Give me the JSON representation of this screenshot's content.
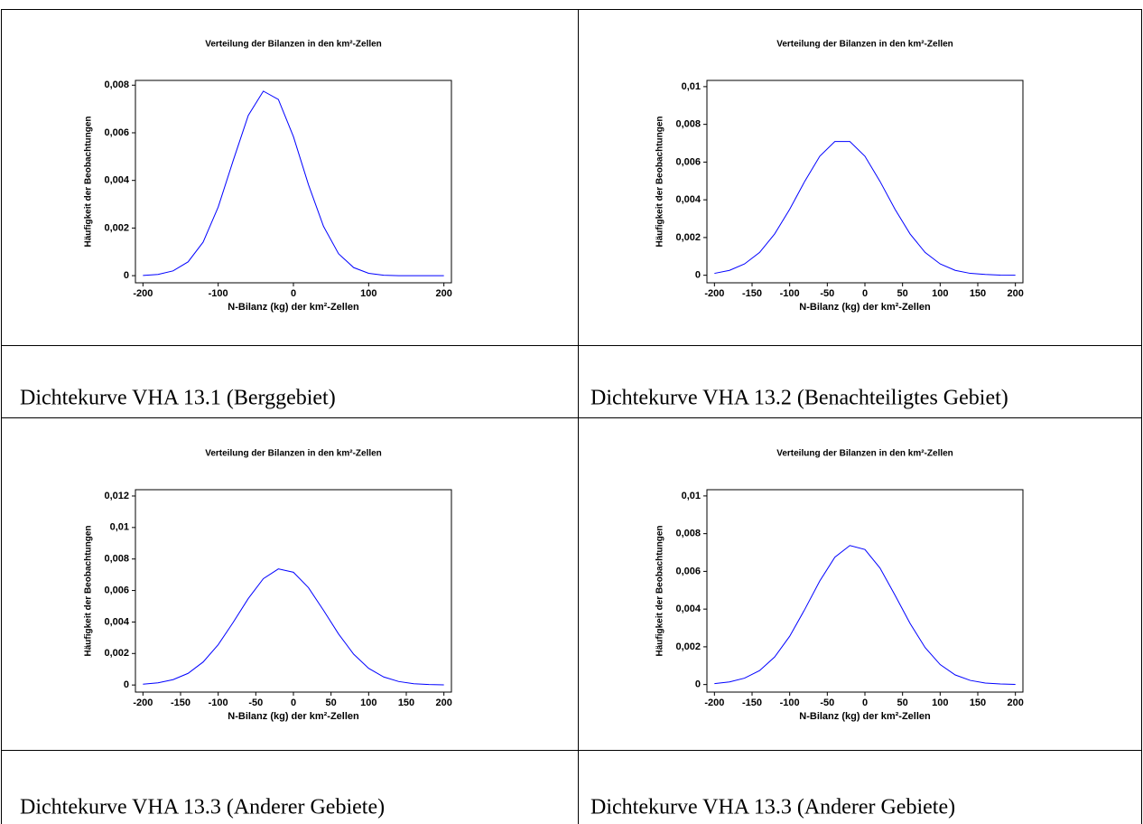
{
  "chart_data": [
    {
      "type": "line",
      "title": "Verteilung der Bilanzen in den km²-Zellen",
      "xlabel": "N-Bilanz (kg) der km²-Zellen",
      "ylabel": "Häufigkeit der Beobachtungen",
      "color": "#0000ff",
      "x": [
        -200,
        -180,
        -160,
        -140,
        -120,
        -100,
        -80,
        -60,
        -40,
        -20,
        0,
        20,
        40,
        60,
        80,
        100,
        120,
        140,
        160,
        180,
        200
      ],
      "values": [
        1e-05,
        5e-05,
        0.0002,
        0.00058,
        0.00141,
        0.00288,
        0.00484,
        0.00673,
        0.00775,
        0.0074,
        0.00584,
        0.00382,
        0.00207,
        0.00092,
        0.00034,
        0.0001,
        2e-05,
        0,
        0,
        0,
        0
      ],
      "xlim": [
        -210,
        210
      ],
      "ylim": [
        -0.0003,
        0.0082
      ],
      "xticks": [
        -200,
        -100,
        0,
        100,
        200
      ],
      "yticks": [
        0,
        {
          "value": 0.002,
          "label": "0,002"
        },
        {
          "value": 0.004,
          "label": "0,004"
        },
        {
          "value": 0.006,
          "label": "0,006"
        },
        {
          "value": 0.008,
          "label": "0,008"
        }
      ]
    },
    {
      "type": "line",
      "title": "Verteilung der Bilanzen in den km²-Zellen",
      "xlabel": "N-Bilanz (kg) der km²-Zellen",
      "ylabel": "Häufigkeit der Beobachtungen",
      "color": "#0000ff",
      "x": [
        -200,
        -180,
        -160,
        -140,
        -120,
        -100,
        -80,
        -60,
        -40,
        -20,
        0,
        20,
        40,
        60,
        80,
        100,
        120,
        140,
        160,
        180,
        200
      ],
      "values": [
        0.0001,
        0.00026,
        0.0006,
        0.00121,
        0.00219,
        0.0035,
        0.00498,
        0.00631,
        0.00709,
        0.00709,
        0.00631,
        0.00498,
        0.0035,
        0.00219,
        0.00121,
        0.0006,
        0.00026,
        0.0001,
        4e-05,
        1e-05,
        0
      ],
      "xlim": [
        -210,
        210
      ],
      "ylim": [
        -0.0004,
        0.01033
      ],
      "xticks": [
        -200,
        -150,
        -100,
        -50,
        0,
        50,
        100,
        150,
        200
      ],
      "yticks": [
        0,
        {
          "value": 0.002,
          "label": "0,002"
        },
        {
          "value": 0.004,
          "label": "0,004"
        },
        {
          "value": 0.006,
          "label": "0,006"
        },
        {
          "value": 0.008,
          "label": "0,008"
        },
        {
          "value": 0.01,
          "label": "0,01"
        }
      ]
    },
    {
      "type": "line",
      "title": "Verteilung der Bilanzen in den km²-Zellen",
      "xlabel": "N-Bilanz (kg) der km²-Zellen",
      "ylabel": "Häufigkeit der Beobachtungen",
      "color": "#0000ff",
      "x": [
        -200,
        -180,
        -160,
        -140,
        -120,
        -100,
        -80,
        -60,
        -40,
        -20,
        0,
        20,
        40,
        60,
        80,
        100,
        120,
        140,
        160,
        180,
        200
      ],
      "values": [
        5e-05,
        0.00014,
        0.00034,
        0.00074,
        0.00146,
        0.00256,
        0.00398,
        0.00549,
        0.00675,
        0.00737,
        0.00716,
        0.00618,
        0.00474,
        0.00324,
        0.00196,
        0.00106,
        0.00051,
        0.00022,
        8e-05,
        3e-05,
        1e-05
      ],
      "xlim": [
        -210,
        210
      ],
      "ylim": [
        -0.00045,
        0.0124
      ],
      "xticks": [
        -200,
        -150,
        -100,
        -50,
        0,
        50,
        100,
        150,
        200
      ],
      "yticks": [
        0,
        {
          "value": 0.002,
          "label": "0,002"
        },
        {
          "value": 0.004,
          "label": "0,004"
        },
        {
          "value": 0.006,
          "label": "0,006"
        },
        {
          "value": 0.008,
          "label": "0,008"
        },
        {
          "value": 0.01,
          "label": "0,01"
        },
        {
          "value": 0.012,
          "label": "0,012"
        }
      ]
    },
    {
      "type": "line",
      "title": "Verteilung der Bilanzen in den km²-Zellen",
      "xlabel": "N-Bilanz (kg) der km²-Zellen",
      "ylabel": "Häufigkeit der Beobachtungen",
      "color": "#0000ff",
      "x": [
        -200,
        -180,
        -160,
        -140,
        -120,
        -100,
        -80,
        -60,
        -40,
        -20,
        0,
        20,
        40,
        60,
        80,
        100,
        120,
        140,
        160,
        180,
        200
      ],
      "values": [
        5e-05,
        0.00014,
        0.00034,
        0.00074,
        0.00146,
        0.00256,
        0.00398,
        0.00549,
        0.00675,
        0.00737,
        0.00716,
        0.00618,
        0.00474,
        0.00324,
        0.00196,
        0.00106,
        0.00051,
        0.00022,
        8e-05,
        3e-05,
        1e-05
      ],
      "xlim": [
        -210,
        210
      ],
      "ylim": [
        -0.0004,
        0.01033
      ],
      "xticks": [
        -200,
        -150,
        -100,
        -50,
        0,
        50,
        100,
        150,
        200
      ],
      "yticks": [
        0,
        {
          "value": 0.002,
          "label": "0,002"
        },
        {
          "value": 0.004,
          "label": "0,004"
        },
        {
          "value": 0.006,
          "label": "0,006"
        },
        {
          "value": 0.008,
          "label": "0,008"
        },
        {
          "value": 0.01,
          "label": "0,01"
        }
      ]
    }
  ],
  "captions": [
    "Dichtekurve VHA 13.1 (Berggebiet)",
    "Dichtekurve VHA 13.2 (Benachteiligtes Gebiet)",
    "Dichtekurve VHA 13.3 (Anderer Gebiete)",
    "Dichtekurve VHA 13.3 (Anderer Gebiete)"
  ]
}
